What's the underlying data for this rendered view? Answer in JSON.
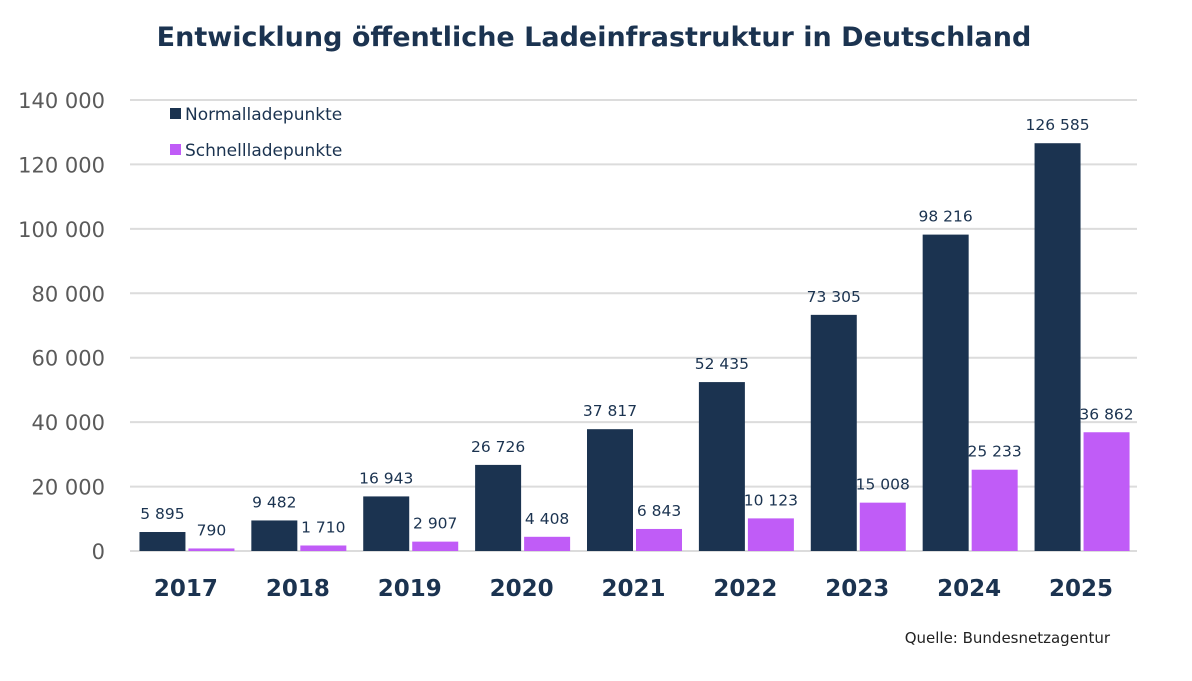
{
  "chart_data": {
    "type": "bar",
    "title": "Entwicklung öffentliche Ladeinfrastruktur in Deutschland",
    "xlabel": "",
    "ylabel": "",
    "categories": [
      "2017",
      "2018",
      "2019",
      "2020",
      "2021",
      "2022",
      "2023",
      "2024",
      "2025"
    ],
    "series": [
      {
        "name": "Normalladepunkte",
        "color": "#1b3350",
        "values": [
          5895,
          9482,
          16943,
          26726,
          37817,
          52435,
          73305,
          98216,
          126585
        ],
        "labels": [
          "5 895",
          "9 482",
          "16 943",
          "26 726",
          "37 817",
          "52 435",
          "73 305",
          "98 216",
          "126 585"
        ]
      },
      {
        "name": "Schnellladepunkte",
        "color": "#c05cf7",
        "values": [
          790,
          1710,
          2907,
          4408,
          6843,
          10123,
          15008,
          25233,
          36862
        ],
        "labels": [
          "790",
          "1 710",
          "2 907",
          "4 408",
          "6 843",
          "10 123",
          "15 008",
          "25 233",
          "36 862"
        ]
      }
    ],
    "ylim": [
      0,
      140000
    ],
    "yticks": [
      0,
      20000,
      40000,
      60000,
      80000,
      100000,
      120000,
      140000
    ],
    "ytick_labels": [
      "0",
      "20 000",
      "40 000",
      "60 000",
      "80 000",
      "100 000",
      "120 000",
      "140 000"
    ],
    "grid": true,
    "legend_position": "top-left",
    "source": "Quelle: Bundesnetzagentur"
  }
}
